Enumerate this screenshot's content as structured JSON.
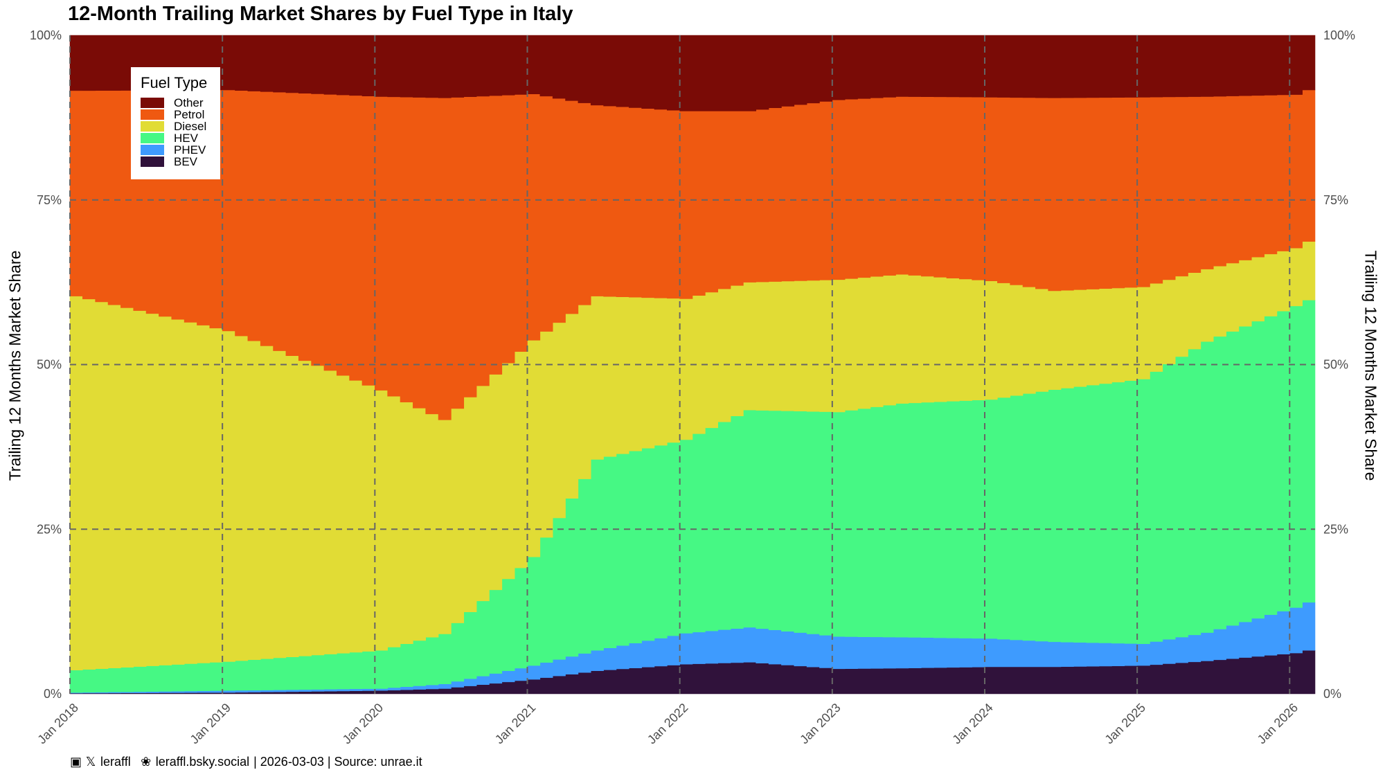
{
  "chart_data": {
    "type": "area",
    "title": "12-Month Trailing Market Shares by Fuel Type in Italy",
    "ylabel": "Trailing 12 Months Market Share",
    "ylabel_right": "Trailing 12 Months Market Share",
    "xlabel": "",
    "ylim": [
      0,
      100
    ],
    "y_ticks": [
      "0%",
      "25%",
      "50%",
      "75%",
      "100%"
    ],
    "x_tick_labels": [
      "Jan 2018",
      "Jan 2019",
      "Jan 2020",
      "Jan 2021",
      "Jan 2022",
      "Jan 2023",
      "Jan 2024",
      "Jan 2025",
      "Jan 2026"
    ],
    "x_start": "Jan 2018",
    "x_end": "Feb 2026",
    "grid": true,
    "legend_placement": "top-left",
    "legend_title": "Fuel Type",
    "stack_order": [
      "BEV",
      "PHEV",
      "HEV",
      "Diesel",
      "Petrol",
      "Other"
    ],
    "legend_order": [
      "Other",
      "Petrol",
      "Diesel",
      "HEV",
      "PHEV",
      "BEV"
    ],
    "colors": {
      "Other": "#7a0b06",
      "Petrol": "#ef5911",
      "Diesel": "#e1dc35",
      "HEV": "#46f884",
      "PHEV": "#3e9bfe",
      "BEV": "#30123b"
    },
    "key_months": [
      "Jan 2018",
      "Jan 2019",
      "Jan 2020",
      "Jun 2020",
      "Jan 2021",
      "Jun 2021",
      "Jan 2022",
      "Jun 2022",
      "Jan 2023",
      "Jun 2023",
      "Jan 2024",
      "Jun 2024",
      "Jan 2025",
      "Jun 2025",
      "Jan 2026",
      "Feb 2026"
    ],
    "series": [
      {
        "name": "BEV",
        "values": [
          0.1,
          0.2,
          0.5,
          0.8,
          2.2,
          3.5,
          4.5,
          4.8,
          3.8,
          3.9,
          4.1,
          4.1,
          4.3,
          5.0,
          6.2,
          6.6
        ]
      },
      {
        "name": "PHEV",
        "values": [
          0.1,
          0.3,
          0.3,
          0.7,
          2.1,
          3.1,
          4.7,
          5.3,
          4.9,
          4.7,
          4.3,
          3.8,
          3.3,
          4.3,
          6.9,
          7.3
        ]
      },
      {
        "name": "HEV",
        "values": [
          3.4,
          4.4,
          5.8,
          7.6,
          16.5,
          29.0,
          29.4,
          33.0,
          34.1,
          35.5,
          36.3,
          38.3,
          40.2,
          44.2,
          45.8,
          45.9
        ]
      },
      {
        "name": "Diesel",
        "values": [
          56.8,
          50.2,
          39.5,
          32.5,
          32.9,
          24.8,
          21.4,
          19.4,
          20.1,
          19.6,
          18.0,
          15.0,
          14.0,
          11.0,
          8.8,
          8.9
        ]
      },
      {
        "name": "Petrol",
        "values": [
          31.2,
          36.6,
          44.6,
          48.9,
          37.4,
          29.0,
          28.5,
          26.0,
          27.3,
          27.0,
          27.9,
          29.3,
          28.8,
          26.2,
          23.3,
          23.0
        ]
      },
      {
        "name": "Other",
        "values": [
          8.4,
          8.3,
          9.3,
          9.5,
          8.9,
          10.6,
          11.5,
          11.5,
          9.8,
          9.3,
          9.4,
          9.5,
          9.4,
          9.3,
          9.0,
          8.3
        ]
      }
    ]
  },
  "caption": {
    "handle_x": "leraffl",
    "handle_bsky": "leraffl.bsky.social",
    "rest": "| 2026-03-03 | Source: unrae.it",
    "icon_threads": "threads-icon",
    "icon_x": "x-icon",
    "icon_bsky": "butterfly-icon"
  }
}
